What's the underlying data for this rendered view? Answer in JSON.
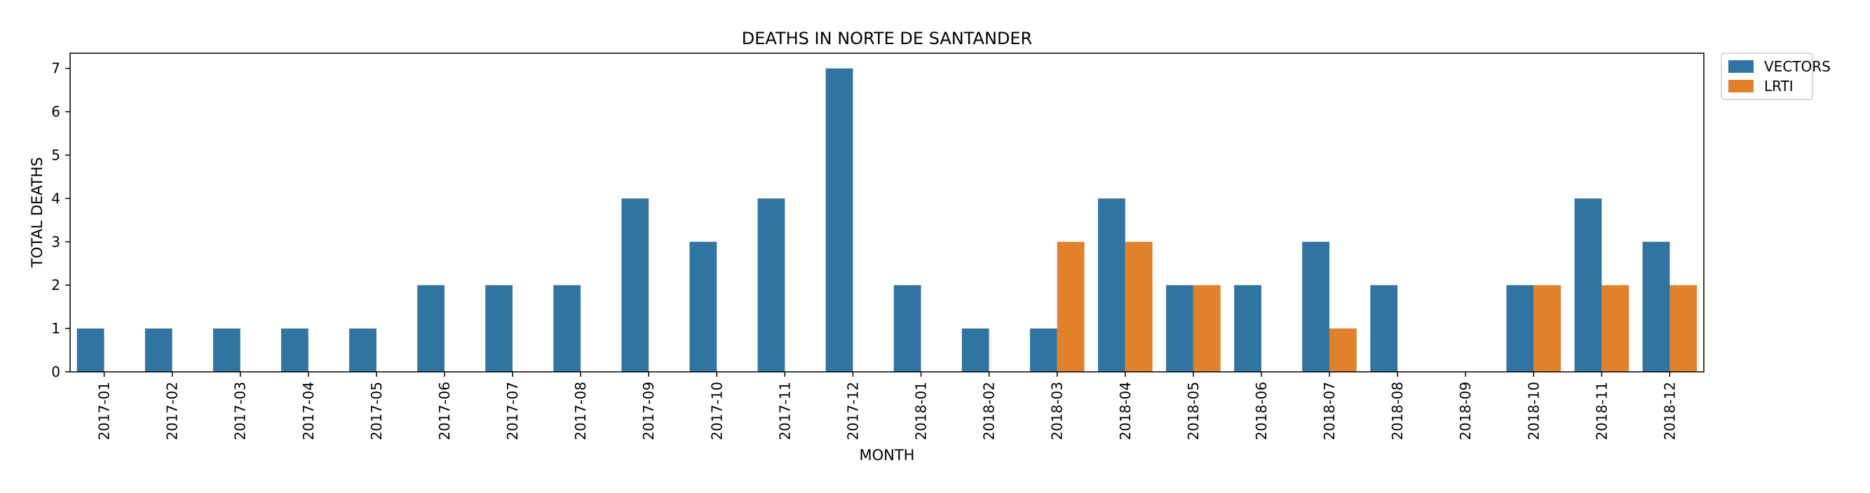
{
  "chart_data": {
    "type": "bar",
    "title": "DEATHS IN NORTE DE SANTANDER",
    "xlabel": "MONTH",
    "ylabel": "TOTAL DEATHS",
    "ylim": [
      0,
      7.35
    ],
    "yticks": [
      0,
      1,
      2,
      3,
      4,
      5,
      6,
      7
    ],
    "grid": false,
    "legend_position": "outside-top-right",
    "categories": [
      "2017-01",
      "2017-02",
      "2017-03",
      "2017-04",
      "2017-05",
      "2017-06",
      "2017-07",
      "2017-08",
      "2017-09",
      "2017-10",
      "2017-11",
      "2017-12",
      "2018-01",
      "2018-02",
      "2018-03",
      "2018-04",
      "2018-05",
      "2018-06",
      "2018-07",
      "2018-08",
      "2018-09",
      "2018-10",
      "2018-11",
      "2018-12"
    ],
    "series": [
      {
        "name": "VECTORS",
        "color": "#3274a1",
        "values": [
          1,
          1,
          1,
          1,
          1,
          2,
          2,
          2,
          4,
          3,
          4,
          7,
          2,
          1,
          1,
          4,
          2,
          2,
          3,
          2,
          null,
          2,
          4,
          3
        ]
      },
      {
        "name": "LRTI",
        "color": "#e1812c",
        "values": [
          null,
          null,
          null,
          null,
          null,
          null,
          null,
          null,
          null,
          null,
          null,
          null,
          null,
          null,
          3,
          3,
          2,
          null,
          1,
          null,
          null,
          2,
          2,
          2
        ]
      }
    ]
  }
}
